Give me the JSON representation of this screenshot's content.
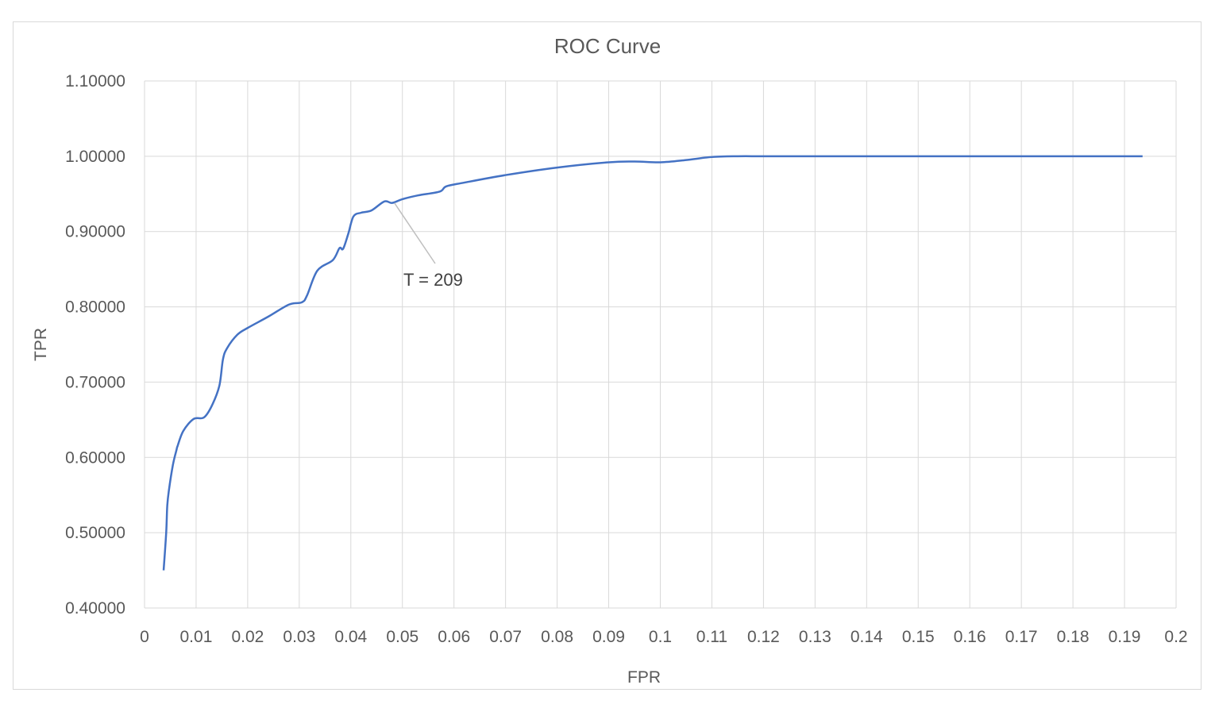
{
  "chart_data": {
    "type": "line",
    "title": "ROC Curve",
    "xlabel": "FPR",
    "ylabel": "TPR",
    "xlim": [
      0,
      0.2
    ],
    "ylim": [
      0.4,
      1.1
    ],
    "x_ticks": [
      0,
      0.01,
      0.02,
      0.03,
      0.04,
      0.05,
      0.06,
      0.07,
      0.08,
      0.09,
      0.1,
      0.11,
      0.12,
      0.13,
      0.14,
      0.15,
      0.16,
      0.17,
      0.18,
      0.19,
      0.2
    ],
    "x_tick_labels": [
      "0",
      "0.01",
      "0.02",
      "0.03",
      "0.04",
      "0.05",
      "0.06",
      "0.07",
      "0.08",
      "0.09",
      "0.1",
      "0.11",
      "0.12",
      "0.13",
      "0.14",
      "0.15",
      "0.16",
      "0.17",
      "0.18",
      "0.19",
      "0.2"
    ],
    "y_ticks": [
      0.4,
      0.5,
      0.6,
      0.7,
      0.8,
      0.9,
      1.0,
      1.1
    ],
    "y_tick_labels": [
      "0.40000",
      "0.50000",
      "0.60000",
      "0.70000",
      "0.80000",
      "0.90000",
      "1.00000",
      "1.10000"
    ],
    "grid": true,
    "legend": "none",
    "series": [
      {
        "color": "#4472c4",
        "x": [
          0.0037,
          0.0042,
          0.0044,
          0.0047,
          0.0055,
          0.0062,
          0.0064,
          0.0075,
          0.0095,
          0.0115,
          0.013,
          0.0145,
          0.0152,
          0.016,
          0.018,
          0.02,
          0.024,
          0.028,
          0.0305,
          0.0315,
          0.0335,
          0.0365,
          0.0378,
          0.0385,
          0.0395,
          0.0405,
          0.042,
          0.044,
          0.0465,
          0.048,
          0.05,
          0.053,
          0.0572,
          0.0585,
          0.062,
          0.07,
          0.08,
          0.09,
          0.095,
          0.1,
          0.105,
          0.11,
          0.115,
          0.12,
          0.13,
          0.15,
          0.17,
          0.19,
          0.1935
        ],
        "y": [
          0.45,
          0.5,
          0.535,
          0.555,
          0.59,
          0.61,
          0.615,
          0.635,
          0.651,
          0.653,
          0.668,
          0.695,
          0.73,
          0.745,
          0.763,
          0.772,
          0.787,
          0.803,
          0.806,
          0.815,
          0.848,
          0.862,
          0.878,
          0.877,
          0.897,
          0.92,
          0.925,
          0.928,
          0.94,
          0.938,
          0.943,
          0.948,
          0.953,
          0.96,
          0.965,
          0.975,
          0.985,
          0.992,
          0.993,
          0.992,
          0.995,
          0.999,
          1.0,
          1.0,
          1.0,
          1.0,
          1.0,
          1.0,
          1.0
        ]
      }
    ],
    "annotations": [
      {
        "text": "T = 209",
        "x": 0.048,
        "y": 0.94
      }
    ]
  }
}
